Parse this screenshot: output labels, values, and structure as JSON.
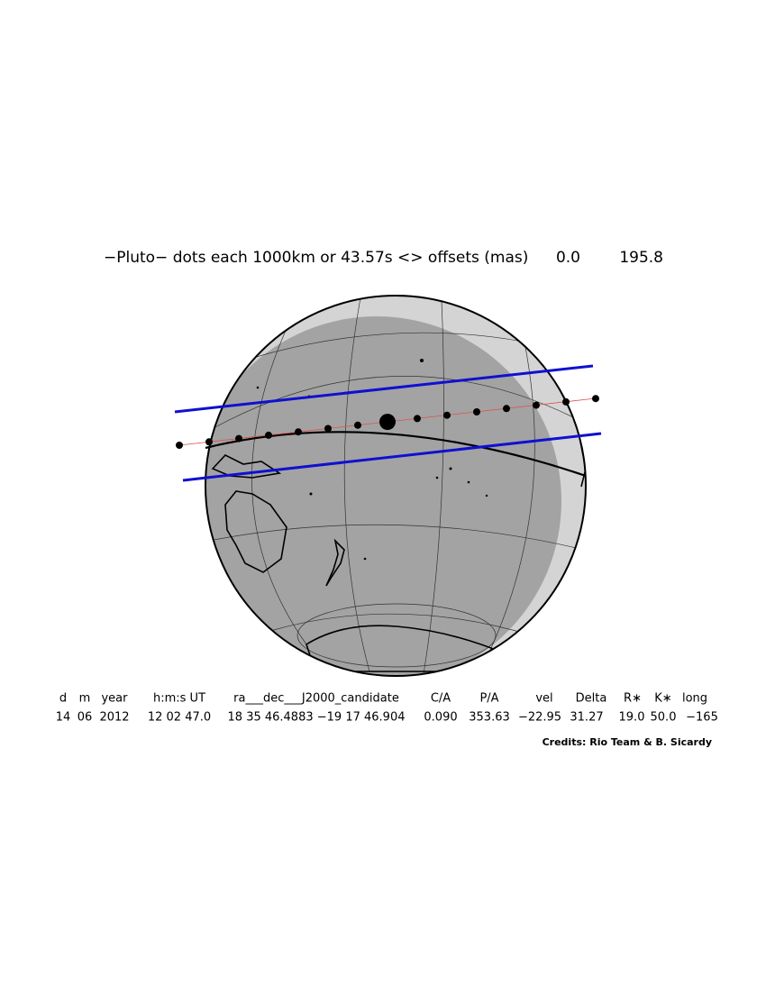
{
  "title": "−Pluto− dots each 1000km or 43.57s <> offsets (mas)",
  "offsets": [
    "0.0",
    "195.8"
  ],
  "table": {
    "header": [
      "d",
      "m",
      "year",
      "h:m:s UT",
      "ra___dec___J2000_candidate",
      "C/A",
      "P/A",
      "vel",
      "Delta",
      "R∗",
      "K∗",
      "long"
    ],
    "values": [
      "14",
      "06",
      "2012",
      "12 02 47.0",
      "18 35 46.4883 −19 17 46.904",
      "0.090",
      "353.63",
      "−22.95",
      "31.27",
      "19.0",
      "50.0",
      "−165"
    ]
  },
  "credits": "Credits: Rio Team & B. Sicardy"
}
